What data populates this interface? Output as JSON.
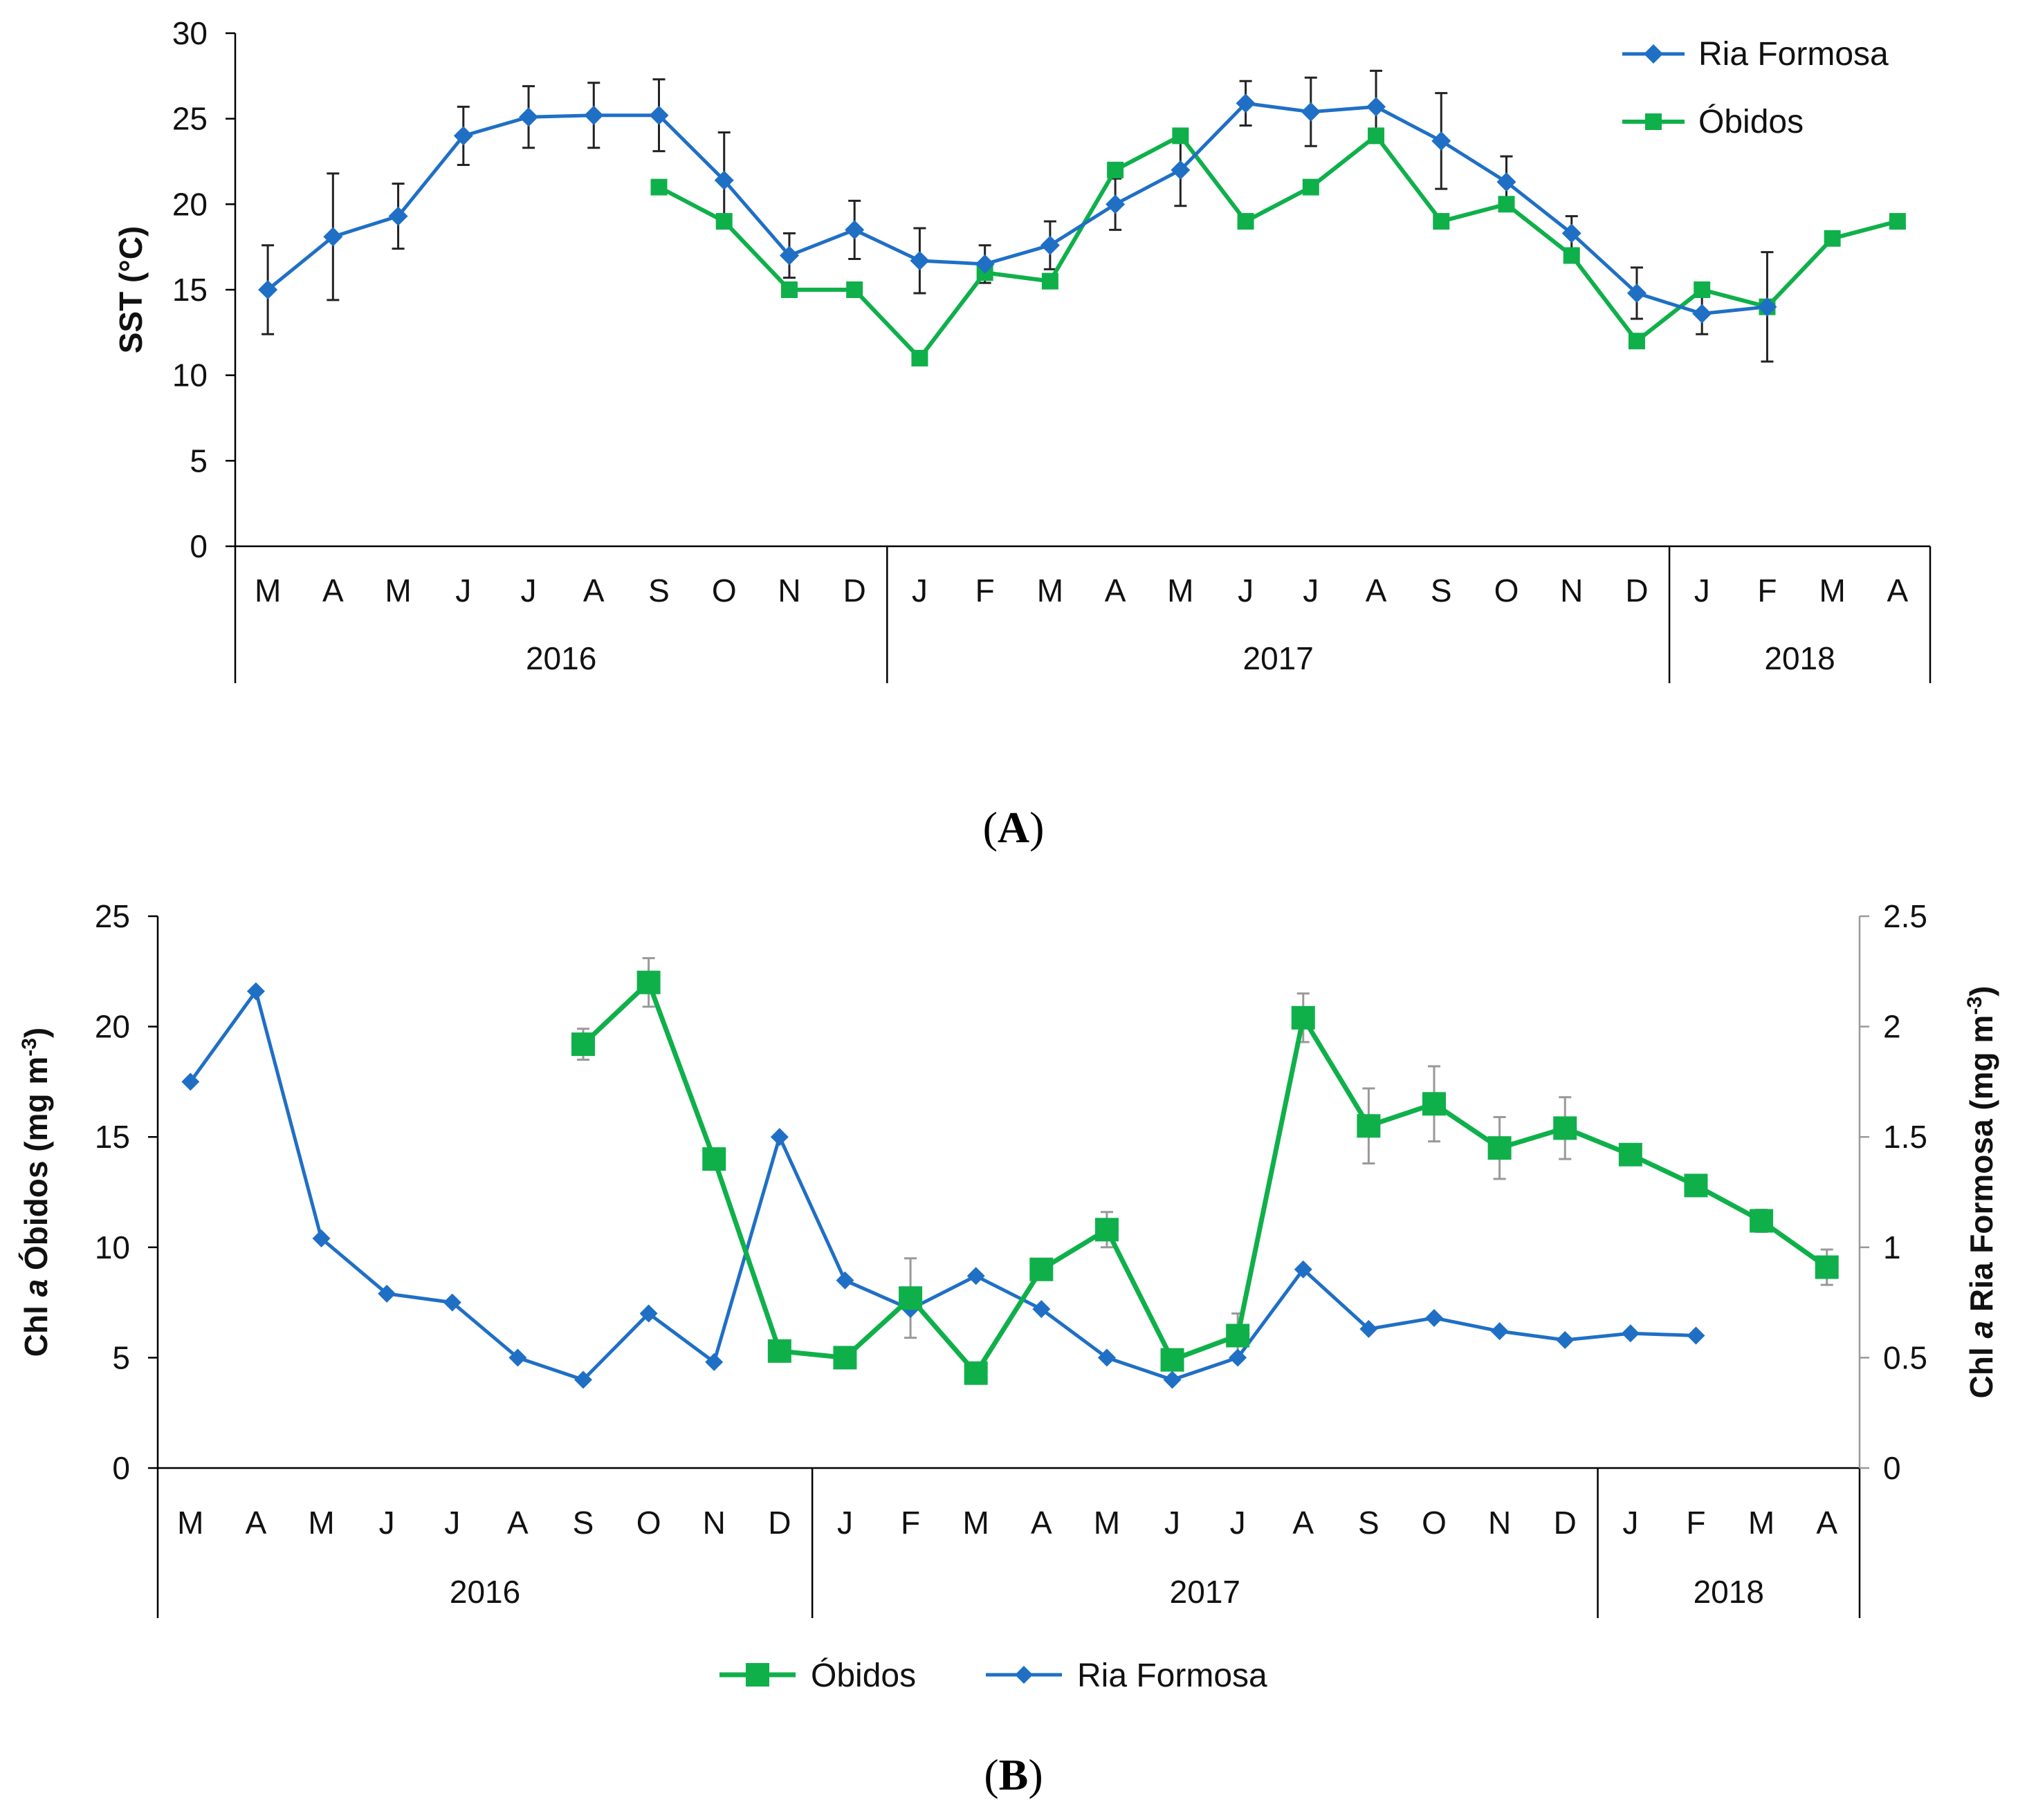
{
  "months": [
    "M",
    "A",
    "M",
    "J",
    "J",
    "A",
    "S",
    "O",
    "N",
    "D",
    "J",
    "F",
    "M",
    "A",
    "M",
    "J",
    "J",
    "A",
    "S",
    "O",
    "N",
    "D",
    "J",
    "F",
    "M",
    "A"
  ],
  "years": [
    {
      "label": "2016",
      "start": 0,
      "end": 10
    },
    {
      "label": "2017",
      "start": 10,
      "end": 22
    },
    {
      "label": "2018",
      "start": 22,
      "end": 26
    }
  ],
  "colors": {
    "ria_formosa": "#1f6fc5",
    "obidos": "#0fb04a",
    "axis": "#000000",
    "error_bar_a": "#222222",
    "error_bar_b": "#999999"
  },
  "panel_a": {
    "label_text": "A",
    "chart_data": {
      "type": "line",
      "ylabel": "SST (°C)",
      "ylim": [
        0,
        30
      ],
      "yticks": [
        0,
        5,
        10,
        15,
        20,
        25,
        30
      ],
      "legend_position": "top-right",
      "series": [
        {
          "name": "Ria Formosa",
          "marker": "diamond",
          "values": [
            15.0,
            18.1,
            19.3,
            24.0,
            25.1,
            25.2,
            25.2,
            21.4,
            17.0,
            18.5,
            16.7,
            16.5,
            17.6,
            20.0,
            22.0,
            25.9,
            25.4,
            25.7,
            23.7,
            21.3,
            18.3,
            14.8,
            13.6,
            14.0,
            null,
            null
          ],
          "error": [
            2.6,
            3.7,
            1.9,
            1.7,
            1.8,
            1.9,
            2.1,
            2.8,
            1.3,
            1.7,
            1.9,
            1.1,
            1.4,
            1.5,
            2.1,
            1.3,
            2.0,
            2.1,
            2.8,
            1.5,
            1.0,
            1.5,
            1.2,
            3.2,
            null,
            null
          ]
        },
        {
          "name": "Óbidos",
          "marker": "square",
          "values": [
            null,
            null,
            null,
            null,
            null,
            null,
            21.0,
            19.0,
            15.0,
            15.0,
            11.0,
            16.0,
            15.5,
            22.0,
            24.0,
            19.0,
            21.0,
            24.0,
            19.0,
            20.0,
            17.0,
            12.0,
            15.0,
            14.0,
            18.0,
            19.0
          ],
          "error": null
        }
      ]
    }
  },
  "panel_b": {
    "label_text": "B",
    "chart_data": {
      "type": "line",
      "ylabel_left_parts": [
        "Chl ",
        "a",
        " Óbidos (mg m",
        "-3",
        ")"
      ],
      "ylabel_right_parts": [
        "Chl ",
        "a",
        " Ria Formosa (mg m",
        "-3",
        ")"
      ],
      "ylim_left": [
        0,
        25
      ],
      "yticks_left": [
        0,
        5,
        10,
        15,
        20,
        25
      ],
      "ylim_right": [
        0,
        2.5
      ],
      "yticks_right": [
        "0",
        "0.5",
        "1",
        "1.5",
        "2",
        "2.5"
      ],
      "legend_position": "bottom-center",
      "series": [
        {
          "name": "Óbidos",
          "axis": "left",
          "marker": "square",
          "values": [
            null,
            null,
            null,
            null,
            null,
            null,
            19.2,
            22.0,
            14.0,
            5.3,
            5.0,
            7.7,
            4.3,
            9.0,
            10.8,
            4.9,
            6.0,
            20.4,
            15.5,
            16.5,
            14.5,
            15.4,
            14.2,
            12.8,
            11.2,
            9.1
          ],
          "error": [
            null,
            null,
            null,
            null,
            null,
            null,
            0.7,
            1.1,
            null,
            null,
            null,
            1.8,
            null,
            null,
            0.8,
            null,
            1.0,
            1.1,
            1.7,
            1.7,
            1.4,
            1.4,
            null,
            null,
            0.5,
            0.8
          ]
        },
        {
          "name": "Ria Formosa",
          "axis": "right",
          "marker": "diamond",
          "values": [
            1.75,
            2.16,
            1.04,
            0.79,
            0.75,
            0.5,
            0.4,
            0.7,
            0.48,
            1.5,
            0.85,
            0.72,
            0.87,
            0.72,
            0.5,
            0.4,
            0.5,
            0.9,
            0.63,
            0.68,
            0.62,
            0.58,
            0.61,
            0.6,
            null,
            null
          ]
        }
      ]
    }
  }
}
